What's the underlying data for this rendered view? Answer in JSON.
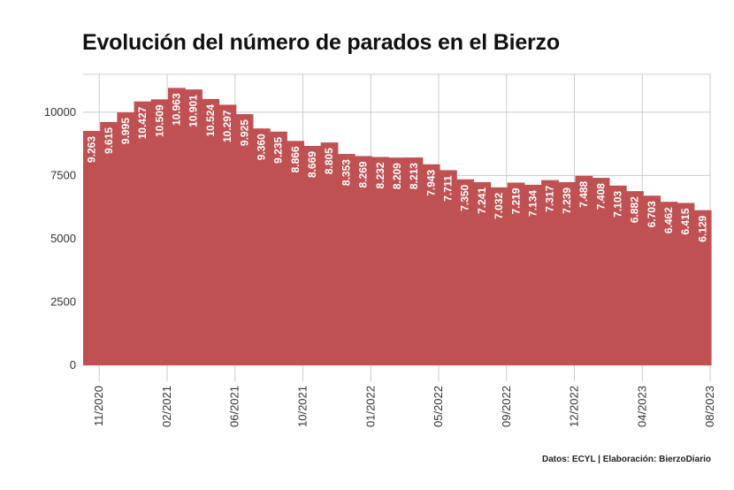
{
  "title": "Evolución del número de parados en el Bierzo",
  "source": "Datos: ECYL | Elaboración: BierzoDiario",
  "colors": {
    "bar": "#c05153",
    "grid": "#cccccc",
    "text": "#333333",
    "label": "#ffffff"
  },
  "chart_data": {
    "type": "bar",
    "y_ticks": [
      0,
      2500,
      5000,
      7500,
      10000
    ],
    "ylim": [
      0,
      11500
    ],
    "grid": true,
    "values": [
      9263,
      9615,
      9995,
      10427,
      10509,
      10963,
      10901,
      10524,
      10297,
      9925,
      9360,
      9235,
      8866,
      8669,
      8805,
      8353,
      8269,
      8232,
      8209,
      8213,
      7943,
      7711,
      7350,
      7241,
      7032,
      7219,
      7134,
      7317,
      7239,
      7488,
      7408,
      7103,
      6882,
      6703,
      6462,
      6415,
      6129
    ],
    "data_labels": [
      "9.263",
      "9.615",
      "9.995",
      "10.427",
      "10.509",
      "10.963",
      "10.901",
      "10.524",
      "10.297",
      "9.925",
      "9.360",
      "9.235",
      "8.866",
      "8.669",
      "8.805",
      "8.353",
      "8.269",
      "8.232",
      "8.209",
      "8.213",
      "7.943",
      "7.711",
      "7.350",
      "7.241",
      "7.032",
      "7.219",
      "7.134",
      "7.317",
      "7.239",
      "7.488",
      "7.408",
      "7.103",
      "6.882",
      "6.703",
      "6.462",
      "6.415",
      "6.129"
    ],
    "x_ticks": [
      {
        "label": "11/2020",
        "index": 4
      },
      {
        "label": "02/2021",
        "index": 8
      },
      {
        "label": "06/2021",
        "index": 12
      },
      {
        "label": "10/2021",
        "index": 16
      },
      {
        "label": "01/2022",
        "index": 20
      },
      {
        "label": "05/2022",
        "index": 24
      },
      {
        "label": "09/2022",
        "index": 28
      },
      {
        "label": "12/2022",
        "index": 32
      },
      {
        "label": "04/2023",
        "index": 36
      },
      {
        "label": "08/2023",
        "index": 40
      }
    ]
  }
}
